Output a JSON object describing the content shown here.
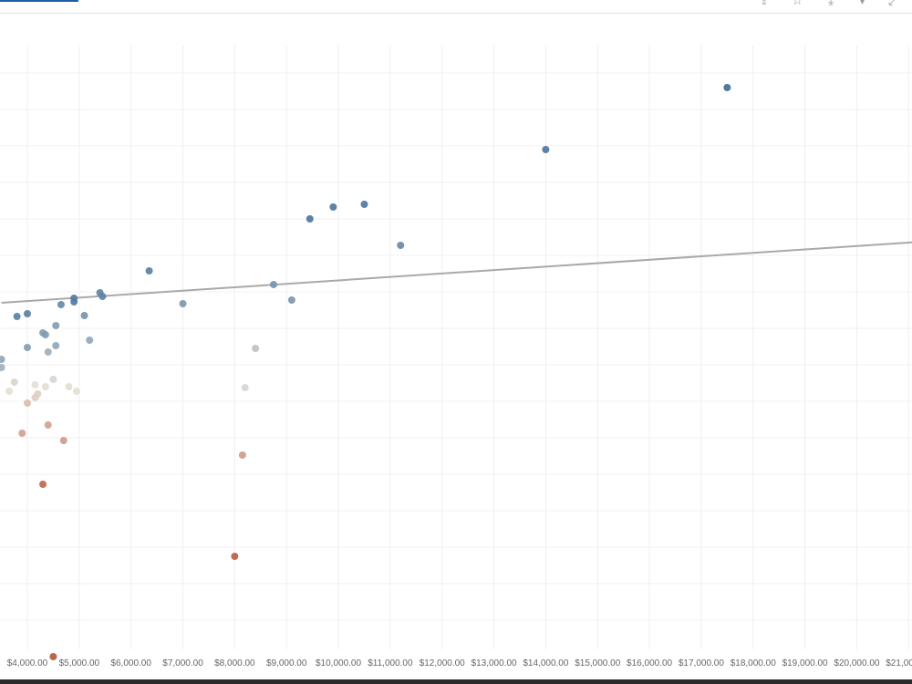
{
  "toolbar": {
    "icons": [
      "share-icon",
      "star-icon",
      "download-icon",
      "pin-icon",
      "expand-icon"
    ]
  },
  "chart_data": {
    "type": "scatter",
    "title": "",
    "xlabel": "",
    "ylabel": "",
    "grid": true,
    "x_ticks": [
      "$4,000.00",
      "$5,000.00",
      "$6,000.00",
      "$7,000.00",
      "$8,000.00",
      "$9,000.00",
      "$10,000.00",
      "$11,000.00",
      "$12,000.00",
      "$13,000.00",
      "$14,000.00",
      "$15,000.00",
      "$16,000.00",
      "$17,000.00",
      "$18,000.00",
      "$19,000.00",
      "$20,000.00",
      "$21,000.00"
    ],
    "x_tick_values": [
      4000,
      5000,
      6000,
      7000,
      8000,
      9000,
      10000,
      11000,
      12000,
      13000,
      14000,
      15000,
      16000,
      17000,
      18000,
      19000,
      20000,
      21000
    ],
    "y_scale_note": "y axis unlabeled in view; values expressed in relative units",
    "trend_line": {
      "x": [
        3500,
        21250
      ],
      "y": [
        6.8,
        13.5
      ],
      "color": "#a9a9a9"
    },
    "color_scale": {
      "low": "#b5553a",
      "mid": "#e4dfd3",
      "high": "#3b6a99"
    },
    "points": [
      {
        "x": 17500,
        "y": 30.4,
        "c": 1.0
      },
      {
        "x": 14000,
        "y": 23.6,
        "c": 0.95
      },
      {
        "x": 10500,
        "y": 17.6,
        "c": 0.95
      },
      {
        "x": 9900,
        "y": 17.3,
        "c": 0.95
      },
      {
        "x": 9450,
        "y": 16.0,
        "c": 0.95
      },
      {
        "x": 11200,
        "y": 13.1,
        "c": 0.85
      },
      {
        "x": 6350,
        "y": 10.3,
        "c": 0.9
      },
      {
        "x": 8750,
        "y": 8.8,
        "c": 0.8
      },
      {
        "x": 9100,
        "y": 7.1,
        "c": 0.78
      },
      {
        "x": 7000,
        "y": 6.7,
        "c": 0.78
      },
      {
        "x": 5400,
        "y": 7.9,
        "c": 0.88
      },
      {
        "x": 5450,
        "y": 7.5,
        "c": 0.88
      },
      {
        "x": 4900,
        "y": 7.3,
        "c": 0.92
      },
      {
        "x": 4900,
        "y": 6.9,
        "c": 0.92
      },
      {
        "x": 4650,
        "y": 6.6,
        "c": 0.85
      },
      {
        "x": 5100,
        "y": 5.4,
        "c": 0.8
      },
      {
        "x": 4000,
        "y": 5.6,
        "c": 0.9
      },
      {
        "x": 3800,
        "y": 5.3,
        "c": 0.9
      },
      {
        "x": 4550,
        "y": 4.3,
        "c": 0.75
      },
      {
        "x": 4300,
        "y": 3.5,
        "c": 0.75
      },
      {
        "x": 4350,
        "y": 3.3,
        "c": 0.75
      },
      {
        "x": 5200,
        "y": 2.7,
        "c": 0.7
      },
      {
        "x": 4000,
        "y": 1.9,
        "c": 0.75
      },
      {
        "x": 4550,
        "y": 2.1,
        "c": 0.7
      },
      {
        "x": 4400,
        "y": 1.4,
        "c": 0.65
      },
      {
        "x": 3500,
        "y": 0.6,
        "c": 0.7
      },
      {
        "x": 3500,
        "y": -0.3,
        "c": 0.65
      },
      {
        "x": 8400,
        "y": 1.8,
        "c": 0.55
      },
      {
        "x": 3750,
        "y": -1.9,
        "c": 0.45
      },
      {
        "x": 3650,
        "y": -2.9,
        "c": 0.4
      },
      {
        "x": 4150,
        "y": -2.2,
        "c": 0.4
      },
      {
        "x": 4350,
        "y": -2.4,
        "c": 0.4
      },
      {
        "x": 4500,
        "y": -1.6,
        "c": 0.45
      },
      {
        "x": 4200,
        "y": -3.2,
        "c": 0.35
      },
      {
        "x": 4150,
        "y": -3.6,
        "c": 0.35
      },
      {
        "x": 4800,
        "y": -2.4,
        "c": 0.4
      },
      {
        "x": 4950,
        "y": -2.9,
        "c": 0.4
      },
      {
        "x": 8200,
        "y": -2.5,
        "c": 0.45
      },
      {
        "x": 4000,
        "y": -4.2,
        "c": 0.3
      },
      {
        "x": 4400,
        "y": -6.6,
        "c": 0.22
      },
      {
        "x": 3900,
        "y": -7.5,
        "c": 0.22
      },
      {
        "x": 4700,
        "y": -8.3,
        "c": 0.2
      },
      {
        "x": 8150,
        "y": -9.9,
        "c": 0.2
      },
      {
        "x": 4300,
        "y": -13.1,
        "c": 0.05
      },
      {
        "x": 8000,
        "y": -21.0,
        "c": 0.02
      },
      {
        "x": 4500,
        "y": -32.0,
        "c": 0.0
      }
    ]
  }
}
